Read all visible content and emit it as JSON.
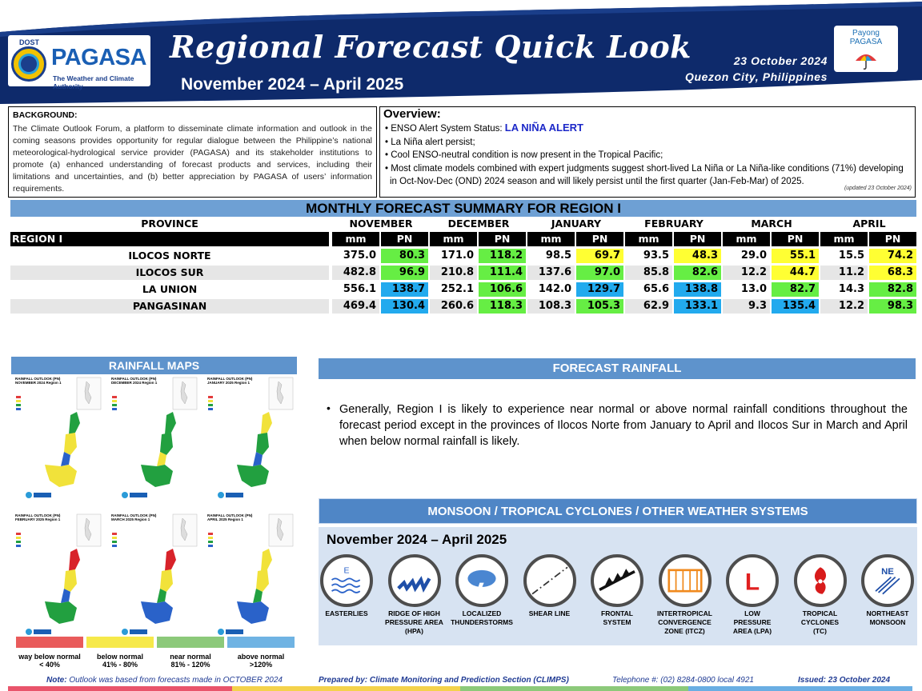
{
  "header": {
    "title": "Regional Forecast Quick Look",
    "period": "November 2024 – April 2025",
    "issue_date": "23 October 2024",
    "location": "Quezon City, Philippines",
    "logo": {
      "agency_top": "DOST",
      "name": "PAGASA",
      "tagline": "The Weather and Climate Authority"
    },
    "payong": {
      "line1": "Payong",
      "line2": "PAGASA"
    }
  },
  "background": {
    "heading": "BACKGROUND:",
    "text": "The Climate Outlook Forum, a platform to disseminate climate information and outlook in the coming seasons provides opportunity for regular dialogue between the Philippine’s national meteorological-hydrological service provider (PAGASA) and its stakeholder institutions to promote (a) enhanced understanding of forecast products and services, including their limitations and uncertainties, and (b) better appreciation by PAGASA of users’ information requirements."
  },
  "overview": {
    "heading": "Overview:",
    "enso_label": "ENSO Alert System Status: ",
    "enso_status": "LA NIÑA ALERT",
    "items": [
      "La Niña alert persist;",
      "Cool ENSO-neutral condition is now present in the Tropical Pacific;",
      "Most climate models combined with expert judgments suggest short-lived La Niña or La Niña-like conditions (71%) developing in Oct-Nov-Dec (OND) 2024 season and will likely persist until the first quarter (Jan-Feb-Mar) of 2025."
    ],
    "updated": "(updated 23 October 2024)"
  },
  "summary": {
    "title": "MONTHLY FORECAST SUMMARY FOR REGION I",
    "province_header": "PROVINCE",
    "region": "REGION I",
    "unit_mm": "mm",
    "unit_pn": "PN",
    "months": [
      "NOVEMBER",
      "DECEMBER",
      "JANUARY",
      "FEBRUARY",
      "MARCH",
      "APRIL"
    ],
    "rows": [
      {
        "province": "ILOCOS NORTE",
        "mm": [
          "375.0",
          "171.0",
          "98.5",
          "93.5",
          "29.0",
          "15.5"
        ],
        "pn": [
          "80.3",
          "118.2",
          "69.7",
          "48.3",
          "55.1",
          "74.2"
        ]
      },
      {
        "province": "ILOCOS SUR",
        "mm": [
          "482.8",
          "210.8",
          "137.6",
          "85.8",
          "12.2",
          "11.2"
        ],
        "pn": [
          "96.9",
          "111.4",
          "97.0",
          "82.6",
          "44.7",
          "68.3"
        ]
      },
      {
        "province": "LA UNION",
        "mm": [
          "556.1",
          "252.1",
          "142.0",
          "65.6",
          "13.0",
          "14.3"
        ],
        "pn": [
          "138.7",
          "106.6",
          "129.7",
          "138.8",
          "82.7",
          "82.8"
        ]
      },
      {
        "province": "PANGASINAN",
        "mm": [
          "469.4",
          "260.6",
          "108.3",
          "62.9",
          "9.3",
          "12.2"
        ],
        "pn": [
          "130.4",
          "118.3",
          "105.3",
          "133.1",
          "135.4",
          "98.3"
        ]
      }
    ],
    "colors": {
      "way_below": "#e94b4b",
      "below": "#ffff33",
      "near": "#66ee44",
      "above": "#22aaee"
    }
  },
  "rainfall_maps": {
    "title": "RAINFALL MAPS",
    "maps": [
      {
        "label": "RAINFALL OUTLOOK (PN) NOVEMBER 2024 Region 1"
      },
      {
        "label": "RAINFALL OUTLOOK (PN) DECEMBER 2024 Region 1"
      },
      {
        "label": "RAINFALL OUTLOOK (PN) JANUARY 2025 Region 1"
      },
      {
        "label": "RAINFALL OUTLOOK (PN) FEBRUARY 2025 Region 1"
      },
      {
        "label": "RAINFALL OUTLOOK (PN) MARCH 2025 Region 1"
      },
      {
        "label": "RAINFALL OUTLOOK (PN) APRIL 2025 Region 1"
      }
    ],
    "legend": [
      {
        "name": "way below normal",
        "range": "< 40%",
        "color": "#e95b5b"
      },
      {
        "name": "below normal",
        "range": "41% - 80%",
        "color": "#f6e94a"
      },
      {
        "name": "near normal",
        "range": "81% - 120%",
        "color": "#8cc97a"
      },
      {
        "name": "above normal",
        "range": ">120%",
        "color": "#6fb3e3"
      }
    ]
  },
  "forecast_rainfall": {
    "title": "FORECAST RAINFALL",
    "text": "Generally, Region I is likely to experience near normal or above normal rainfall conditions throughout the forecast period except in the provinces of Ilocos Norte from January to April and Ilocos Sur in March and April when below normal rainfall is likely."
  },
  "systems": {
    "title": "MONSOON / TROPICAL CYCLONES / OTHER WEATHER SYSTEMS",
    "period": "November 2024 – April 2025",
    "icons": [
      {
        "icon": "easterlies-icon",
        "l1": "EASTERLIES",
        "l2": "",
        "l3": ""
      },
      {
        "icon": "ridge-icon",
        "l1": "RIDGE OF HIGH",
        "l2": "PRESSURE AREA",
        "l3": "(HPA)"
      },
      {
        "icon": "thunderstorm-icon",
        "l1": "LOCALIZED",
        "l2": "THUNDERSTORMS",
        "l3": ""
      },
      {
        "icon": "shear-line-icon",
        "l1": "SHEAR LINE",
        "l2": "",
        "l3": ""
      },
      {
        "icon": "frontal-system-icon",
        "l1": "FRONTAL",
        "l2": "SYSTEM",
        "l3": ""
      },
      {
        "icon": "itcz-icon",
        "l1": "INTERTROPICAL",
        "l2": "CONVERGENCE",
        "l3": "ZONE (ITCZ)"
      },
      {
        "icon": "low-pressure-icon",
        "l1": "LOW",
        "l2": "PRESSURE",
        "l3": "AREA (LPA)"
      },
      {
        "icon": "tropical-cyclone-icon",
        "l1": "TROPICAL",
        "l2": "CYCLONES",
        "l3": "(TC)"
      },
      {
        "icon": "northeast-monsoon-icon",
        "l1": "NORTHEAST",
        "l2": "MONSOON",
        "l3": ""
      }
    ],
    "easterlies_letter": "E",
    "ne_letters": "NE",
    "lpa_letter": "L"
  },
  "footer": {
    "note_label": "Note:",
    "note": "Outlook was based from forecasts made in OCTOBER 2024",
    "prepared": "Prepared by: Climate Monitoring and Prediction Section (CLIMPS)",
    "telephone": "Telephone #: (02) 8284-0800 local 4921",
    "issued": "Issued: 23 October 2024"
  }
}
